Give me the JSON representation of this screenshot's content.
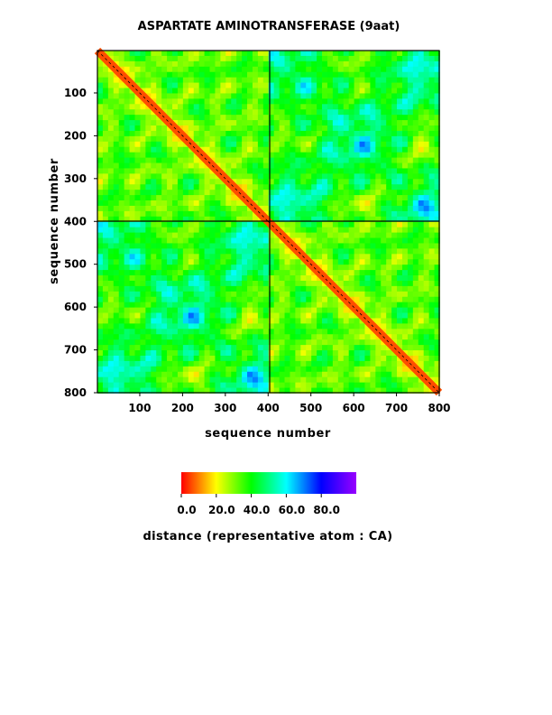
{
  "chart_data": {
    "type": "heatmap",
    "title": "ASPARTATE AMINOTRANSFERASE (9aat)",
    "xlabel": "sequence number",
    "ylabel": "sequence number",
    "xlim": [
      1,
      800
    ],
    "ylim": [
      1,
      800
    ],
    "x_ticks": [
      100,
      200,
      300,
      400,
      500,
      600,
      700,
      800
    ],
    "y_ticks": [
      100,
      200,
      300,
      400,
      500,
      600,
      700,
      800
    ],
    "y_axis_inverted": true,
    "chain_boundary": 400,
    "diagonal_value": 0,
    "colorbar": {
      "label": "distance (representative atom : CA)",
      "range": [
        0,
        100
      ],
      "ticks": [
        0,
        20,
        40,
        60,
        80
      ],
      "tick_labels": [
        "0.0",
        "20.0",
        "40.0",
        "60.0",
        "80.0"
      ],
      "colors": [
        "#ff0000",
        "#ffff00",
        "#00ff00",
        "#00ffff",
        "#0000ff",
        "#9900ff"
      ]
    },
    "contour_lines": true,
    "contour_color": "#000000"
  }
}
